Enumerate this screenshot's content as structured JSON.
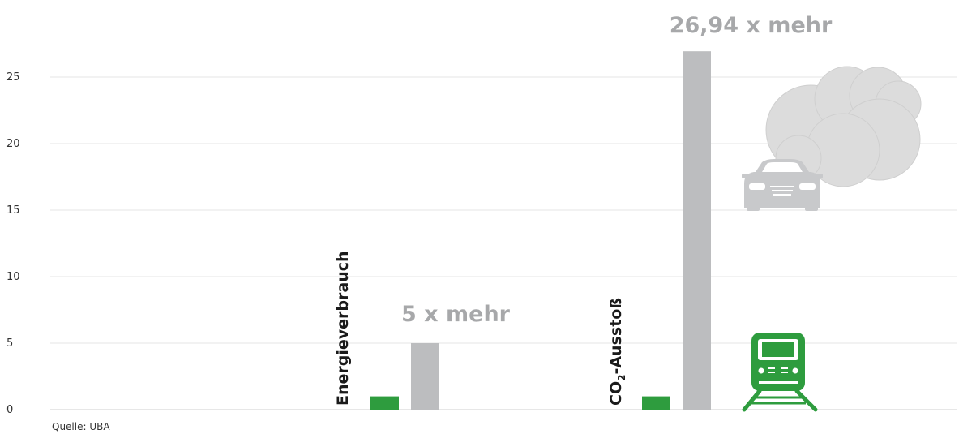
{
  "chart_data": {
    "type": "bar",
    "categories": [
      "Energieverbrauch",
      "CO₂-Ausstoß"
    ],
    "category_labels": [
      {
        "main": "Energieverbrauch",
        "sub": ""
      },
      {
        "main": "CO",
        "sub": "2",
        "tail": "-Ausstoß"
      }
    ],
    "series": [
      {
        "values": [
          1,
          1
        ],
        "color": "#2e9c3e"
      },
      {
        "values": [
          5,
          26.94
        ],
        "color": "#bcbdbf"
      }
    ],
    "annotations": [
      "5 x mehr",
      "26,94 x mehr"
    ],
    "yticks": [
      0,
      5,
      10,
      15,
      20,
      25
    ],
    "ylim": [
      0,
      30
    ],
    "grid": true,
    "source": "Quelle: UBA"
  },
  "icons": [
    "train-icon",
    "car-icon",
    "cloud-icon"
  ],
  "colors": {
    "green": "#2e9c3e",
    "gray": "#bcbdbf",
    "annotation": "#a7a8aa",
    "icon_gray": "#c8c9cb",
    "cloud": "#dcdcdc"
  }
}
